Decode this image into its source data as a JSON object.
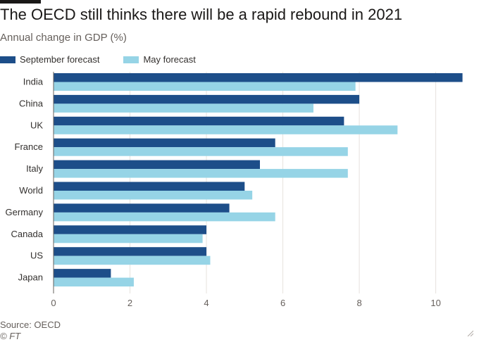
{
  "title": "The OECD still thinks there will be a rapid rebound in 2021",
  "subtitle": "Annual change in GDP (%)",
  "source": "Source: OECD",
  "credit": "© FT",
  "colors": {
    "september": "#1d4e89",
    "may": "#96d4e6",
    "grid": "#e6e2dd"
  },
  "chart_data": {
    "type": "bar",
    "orientation": "horizontal",
    "categories": [
      "India",
      "China",
      "UK",
      "France",
      "Italy",
      "World",
      "Germany",
      "Canada",
      "US",
      "Japan"
    ],
    "series": [
      {
        "name": "September forecast",
        "values": [
          10.7,
          8.0,
          7.6,
          5.8,
          5.4,
          5.0,
          4.6,
          4.0,
          4.0,
          1.5
        ]
      },
      {
        "name": "May forecast",
        "values": [
          7.9,
          6.8,
          9.0,
          7.7,
          7.7,
          5.2,
          5.8,
          3.9,
          4.1,
          2.1
        ]
      }
    ],
    "xlim": [
      0,
      10.8
    ],
    "xticks": [
      0,
      2,
      4,
      6,
      8,
      10
    ],
    "grid": true,
    "legend": "top-left"
  }
}
